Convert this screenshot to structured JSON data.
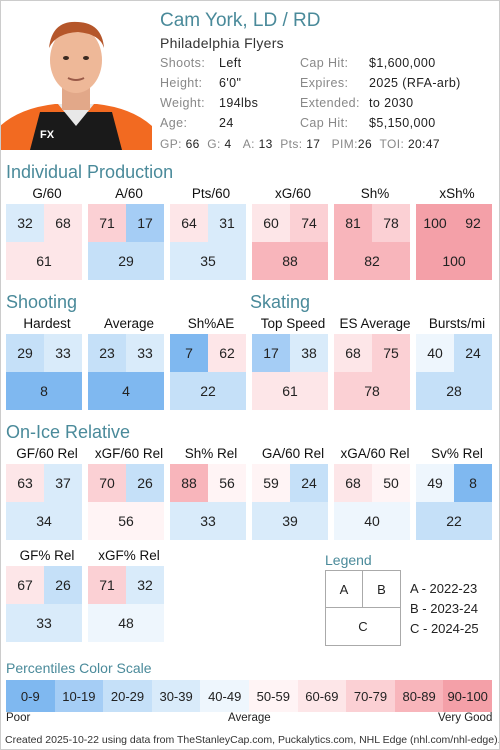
{
  "player": {
    "name": "Cam York, LD / RD",
    "team": "Philadelphia Flyers",
    "shoots_label": "Shoots:",
    "shoots": "Left",
    "height_label": "Height:",
    "height": "6'0\"",
    "weight_label": "Weight:",
    "weight": "194lbs",
    "age_label": "Age:",
    "age": "24",
    "caphit_label": "Cap Hit:",
    "caphit": "$1,600,000",
    "expires_label": "Expires:",
    "expires": "2025 (RFA-arb)",
    "extended_label": "Extended:",
    "extended": "to 2030",
    "caphit2_label": "Cap Hit:",
    "caphit2": "$5,150,000"
  },
  "stats_line": {
    "gp_label": "GP:",
    "gp": "66",
    "g_label": "G:",
    "g": "4",
    "a_label": "A:",
    "a": "13",
    "pts_label": "Pts:",
    "pts": "17",
    "pim_label": "PIM:",
    "pim": "26",
    "toi_label": "TOI:",
    "toi": "20:47"
  },
  "sections": {
    "production": "Individual Production",
    "shooting": "Shooting",
    "skating": "Skating",
    "onice": "On-Ice Relative"
  },
  "metrics": [
    {
      "label": "G/60",
      "a": "32",
      "b": "68",
      "c": "61"
    },
    {
      "label": "A/60",
      "a": "71",
      "b": "17",
      "c": "29"
    },
    {
      "label": "Pts/60",
      "a": "64",
      "b": "31",
      "c": "35"
    },
    {
      "label": "xG/60",
      "a": "60",
      "b": "74",
      "c": "88"
    },
    {
      "label": "Sh%",
      "a": "81",
      "b": "78",
      "c": "82"
    },
    {
      "label": "xSh%",
      "a": "100",
      "b": "92",
      "c": "100"
    },
    {
      "label": "Hardest",
      "a": "29",
      "b": "33",
      "c": "8"
    },
    {
      "label": "Average",
      "a": "23",
      "b": "33",
      "c": "4"
    },
    {
      "label": "Sh%AE",
      "a": "7",
      "b": "62",
      "c": "22"
    },
    {
      "label": "Top Speed",
      "a": "17",
      "b": "38",
      "c": "61"
    },
    {
      "label": "ES Average",
      "a": "68",
      "b": "75",
      "c": "78"
    },
    {
      "label": "Bursts/mi",
      "a": "40",
      "b": "24",
      "c": "28"
    },
    {
      "label": "GF/60 Rel",
      "a": "63",
      "b": "37",
      "c": "34"
    },
    {
      "label": "xGF/60 Rel",
      "a": "70",
      "b": "26",
      "c": "56"
    },
    {
      "label": "Sh% Rel",
      "a": "88",
      "b": "56",
      "c": "33"
    },
    {
      "label": "GA/60 Rel",
      "a": "59",
      "b": "24",
      "c": "39"
    },
    {
      "label": "xGA/60 Rel",
      "a": "68",
      "b": "50",
      "c": "40"
    },
    {
      "label": "Sv% Rel",
      "a": "49",
      "b": "8",
      "c": "22"
    },
    {
      "label": "GF% Rel",
      "a": "67",
      "b": "26",
      "c": "33"
    },
    {
      "label": "xGF% Rel",
      "a": "71",
      "b": "32",
      "c": "48"
    }
  ],
  "legend": {
    "title": "Legend",
    "a": "A",
    "b": "B",
    "c": "C",
    "a_text": "A - 2022-23",
    "b_text": "B - 2023-24",
    "c_text": "C - 2024-25"
  },
  "scale": {
    "title": "Percentiles Color Scale",
    "bins": [
      "0-9",
      "10-19",
      "20-29",
      "30-39",
      "40-49",
      "50-59",
      "60-69",
      "70-79",
      "80-89",
      "90-100"
    ],
    "colors": [
      "#7fb8f0",
      "#a5cdf5",
      "#c5e0f8",
      "#d9ebfa",
      "#eef6fd",
      "#fff4f5",
      "#fde6e8",
      "#fbd0d4",
      "#f8b5bb",
      "#f4a0a8"
    ],
    "poor": "Poor",
    "average": "Average",
    "very_good": "Very Good"
  },
  "footer": "Created 2025-10-22 using data from TheStanleyCap.com, Puckalytics.com, NHL Edge (nhl.com/nhl-edge)."
}
